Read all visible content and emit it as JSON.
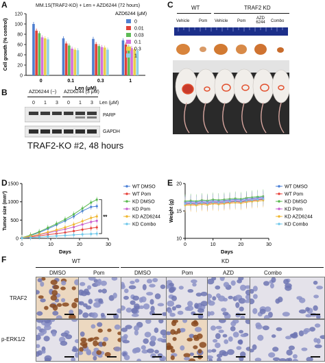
{
  "panel_labels": [
    "A",
    "B",
    "C",
    "D",
    "E",
    "F"
  ],
  "colors": {
    "c0": "#4f7fd0",
    "c001": "#e0423a",
    "c003": "#5dbb55",
    "c01": "#d56fd8",
    "c03": "#e8cf4a",
    "c1": "#8fd0e8",
    "wt_dmso": "#4a7fd6",
    "wt_pom": "#e7433b",
    "kd_dmso": "#58b94e",
    "kd_pom": "#c95fcf",
    "kd_azd": "#f0b730",
    "kd_combo": "#6fc7ea"
  },
  "panel_a": {
    "chart_data": {
      "type": "bar",
      "title": "MM.1S(TRAF2-KO) + Len + AZD6244 (72 hours)",
      "legend_title": "AZD6244 (μM)",
      "legend_placement": "top-right",
      "xlabel": "Len (μM)",
      "ylabel": "Cell growth (% control)",
      "ylim": [
        0,
        120
      ],
      "yticks": [
        "0",
        "20",
        "40",
        "60",
        "80",
        "100",
        "120"
      ],
      "categories": [
        "0",
        "0.1",
        "0.3",
        "1"
      ],
      "series": [
        {
          "name": "0",
          "values": [
            100,
            72,
            71,
            68
          ]
        },
        {
          "name": "0.01",
          "values": [
            87,
            62,
            61,
            60
          ]
        },
        {
          "name": "0.03",
          "values": [
            82,
            58,
            57,
            56
          ]
        },
        {
          "name": "0.1",
          "values": [
            74,
            52,
            55,
            53
          ]
        },
        {
          "name": "0.3",
          "values": [
            72,
            50,
            54,
            51
          ]
        },
        {
          "name": "1",
          "values": [
            70,
            49,
            50,
            48
          ]
        }
      ]
    }
  },
  "panel_b": {
    "azd_neg": "AZD6244 (−)",
    "azd_pos": "AZD6244 (3 μM)",
    "len_unit": "Len (μM)",
    "lanes": [
      "0",
      "1",
      "3",
      "0",
      "1",
      "3"
    ],
    "band_parp": "PARP",
    "band_gapdh": "GAPDH",
    "caption": "TRAF2-KO #2, 48 hours"
  },
  "panel_c": {
    "group_wt": "WT",
    "group_kd": "TRAF2 KD",
    "columns": [
      "Vehicle",
      "Pom",
      "Vehicle",
      "Pom",
      "AZD 6244",
      "Combo"
    ]
  },
  "panel_d": {
    "chart_data": {
      "type": "line",
      "xlabel": "Days",
      "ylabel": "Tumor size (mm³)",
      "xlim": [
        0,
        30
      ],
      "ylim": [
        0,
        1500
      ],
      "xticks": [
        "0",
        "10",
        "20",
        "30"
      ],
      "yticks": [
        "0",
        "500",
        "1000",
        "1500"
      ],
      "annotation": "**",
      "legend_placement": "right",
      "x": [
        0,
        3,
        6,
        9,
        12,
        15,
        18,
        21,
        24,
        26
      ],
      "series": [
        {
          "name": "WT DMSO",
          "values": [
            20,
            80,
            160,
            260,
            370,
            480,
            600,
            750,
            860,
            880
          ]
        },
        {
          "name": "WT Pom",
          "values": [
            15,
            40,
            70,
            100,
            130,
            160,
            200,
            240,
            280,
            300
          ]
        },
        {
          "name": "KD DMSO",
          "values": [
            20,
            90,
            180,
            290,
            400,
            520,
            660,
            820,
            980,
            1060
          ]
        },
        {
          "name": "KD Pom",
          "values": [
            18,
            55,
            100,
            150,
            200,
            250,
            310,
            380,
            450,
            480
          ]
        },
        {
          "name": "KD AZD6244",
          "values": [
            18,
            60,
            110,
            170,
            230,
            300,
            380,
            470,
            560,
            600
          ]
        },
        {
          "name": "KD Combo",
          "values": [
            10,
            20,
            35,
            50,
            65,
            80,
            95,
            110,
            120,
            130
          ]
        }
      ]
    }
  },
  "panel_e": {
    "chart_data": {
      "type": "line",
      "xlabel": "Days",
      "ylabel": "Weight (g)",
      "xlim": [
        0,
        30
      ],
      "ylim": [
        10,
        20
      ],
      "xticks": [
        "0",
        "10",
        "20",
        "30"
      ],
      "yticks": [
        "10",
        "15",
        "20"
      ],
      "legend_placement": "right",
      "x": [
        0,
        2,
        4,
        6,
        8,
        10,
        12,
        14,
        16,
        18,
        20,
        22,
        24,
        26,
        28
      ],
      "series": [
        {
          "name": "WT DMSO",
          "values": [
            16.6,
            16.7,
            16.6,
            16.8,
            16.7,
            16.9,
            16.8,
            16.9,
            17.0,
            17.1,
            17.0,
            17.2,
            17.3,
            17.4,
            17.5
          ]
        },
        {
          "name": "WT Pom",
          "values": [
            16.2,
            16.3,
            16.2,
            16.4,
            16.3,
            16.5,
            16.4,
            16.5,
            16.6,
            16.7,
            16.6,
            16.8,
            16.9,
            17.0,
            17.1
          ]
        },
        {
          "name": "KD DMSO",
          "values": [
            16.8,
            16.9,
            16.8,
            17.0,
            16.9,
            17.1,
            17.0,
            17.1,
            17.2,
            17.3,
            17.2,
            17.4,
            17.5,
            17.6,
            17.7
          ]
        },
        {
          "name": "KD Pom",
          "values": [
            16.4,
            16.5,
            16.4,
            16.6,
            16.5,
            16.7,
            16.6,
            16.7,
            16.8,
            16.9,
            16.8,
            17.0,
            17.1,
            17.2,
            17.3
          ]
        },
        {
          "name": "KD AZD6244",
          "values": [
            16.0,
            16.1,
            16.0,
            16.2,
            16.1,
            16.3,
            16.2,
            16.3,
            16.4,
            16.5,
            16.4,
            16.6,
            16.7,
            16.8,
            16.9
          ]
        },
        {
          "name": "KD Combo",
          "values": [
            16.3,
            16.4,
            16.3,
            16.5,
            16.4,
            16.6,
            16.5,
            16.6,
            16.7,
            16.8,
            16.7,
            16.9,
            17.0,
            17.1,
            17.2
          ]
        }
      ]
    }
  },
  "panel_f": {
    "group_wt": "WT",
    "group_kd": "KD",
    "columns": [
      "DMSO",
      "Pom",
      "DMSO",
      "Pom",
      "AZD",
      "Combo"
    ],
    "row_labels": [
      "TRAF2",
      "p-ERK1/2"
    ]
  }
}
